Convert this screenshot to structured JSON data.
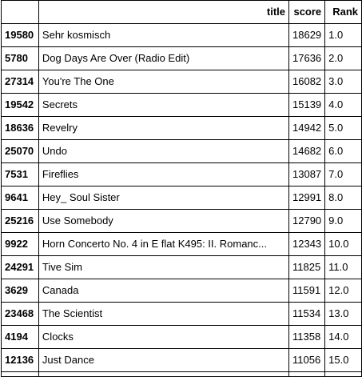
{
  "table": {
    "headers": {
      "index": "",
      "title": "title",
      "score": "score",
      "rank": "Rank"
    },
    "rows": [
      {
        "index": "19580",
        "title": "Sehr kosmisch",
        "score": "18629",
        "rank": "1.0"
      },
      {
        "index": "5780",
        "title": "Dog Days Are Over (Radio Edit)",
        "score": "17636",
        "rank": "2.0"
      },
      {
        "index": "27314",
        "title": "You're The One",
        "score": "16082",
        "rank": "3.0"
      },
      {
        "index": "19542",
        "title": "Secrets",
        "score": "15139",
        "rank": "4.0"
      },
      {
        "index": "18636",
        "title": "Revelry",
        "score": "14942",
        "rank": "5.0"
      },
      {
        "index": "25070",
        "title": "Undo",
        "score": "14682",
        "rank": "6.0"
      },
      {
        "index": "7531",
        "title": "Fireflies",
        "score": "13087",
        "rank": "7.0"
      },
      {
        "index": "9641",
        "title": "Hey_ Soul Sister",
        "score": "12991",
        "rank": "8.0"
      },
      {
        "index": "25216",
        "title": "Use Somebody",
        "score": "12790",
        "rank": "9.0"
      },
      {
        "index": "9922",
        "title": "Horn Concerto No. 4 in E flat K495: II. Romanc...",
        "score": "12343",
        "rank": "10.0"
      },
      {
        "index": "24291",
        "title": "Tive Sim",
        "score": "11825",
        "rank": "11.0"
      },
      {
        "index": "3629",
        "title": "Canada",
        "score": "11591",
        "rank": "12.0"
      },
      {
        "index": "23468",
        "title": "The Scientist",
        "score": "11534",
        "rank": "13.0"
      },
      {
        "index": "4194",
        "title": "Clocks",
        "score": "11358",
        "rank": "14.0"
      },
      {
        "index": "12136",
        "title": "Just Dance",
        "score": "11056",
        "rank": "15.0"
      }
    ]
  }
}
